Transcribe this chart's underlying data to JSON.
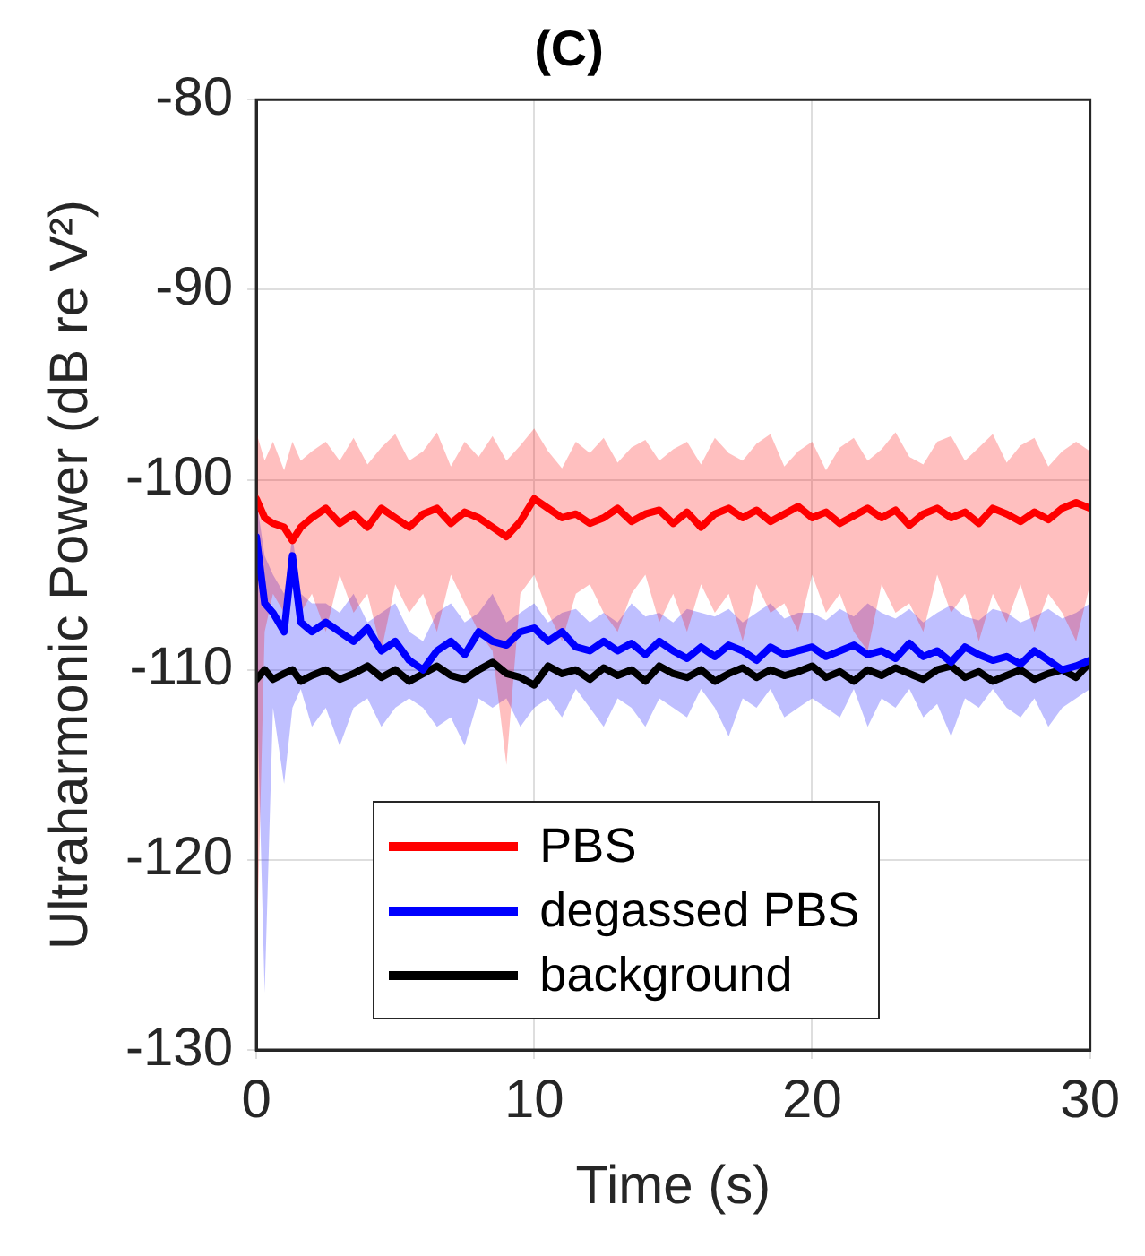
{
  "chart_data": {
    "type": "line",
    "title": "(C)",
    "xlabel": "Time (s)",
    "ylabel": "Ultraharmonic Power (dB re V²)",
    "xlim": [
      0,
      30
    ],
    "xticks": [
      0,
      10,
      20,
      30
    ],
    "ylim": [
      -130,
      -80
    ],
    "yticks": [
      -130,
      -120,
      -110,
      -100,
      -90,
      -80
    ],
    "grid": true,
    "legend": "bottom",
    "marker": "none",
    "line_style": "solid",
    "x": [
      0,
      0.3,
      0.6,
      1,
      1.3,
      1.6,
      2,
      2.5,
      3,
      3.5,
      4,
      4.5,
      5,
      5.5,
      6,
      6.5,
      7,
      7.5,
      8,
      8.5,
      9,
      9.5,
      10,
      10.5,
      11,
      11.5,
      12,
      12.5,
      13,
      13.5,
      14,
      14.5,
      15,
      15.5,
      16,
      16.5,
      17,
      17.5,
      18,
      18.5,
      19,
      19.5,
      20,
      20.5,
      21,
      21.5,
      22,
      22.5,
      23,
      23.5,
      24,
      24.5,
      25,
      25.5,
      26,
      26.5,
      27,
      27.5,
      28,
      28.5,
      29,
      29.5,
      30
    ],
    "series": [
      {
        "name": "PBS",
        "color": "#ff0000",
        "values": [
          -101,
          -102,
          -102.3,
          -102.5,
          -103.2,
          -102.5,
          -102,
          -101.5,
          -102.3,
          -101.8,
          -102.5,
          -101.5,
          -102,
          -102.5,
          -101.8,
          -101.5,
          -102.3,
          -101.7,
          -102,
          -102.5,
          -103,
          -102.2,
          -101,
          -101.5,
          -102,
          -101.8,
          -102.3,
          -102,
          -101.5,
          -102.2,
          -101.8,
          -101.6,
          -102.3,
          -101.7,
          -102.5,
          -101.8,
          -101.5,
          -102,
          -101.6,
          -102.2,
          -101.8,
          -101.4,
          -102,
          -101.7,
          -102.3,
          -101.9,
          -101.5,
          -102,
          -101.6,
          -102.4,
          -101.8,
          -101.5,
          -102,
          -101.7,
          -102.3,
          -101.5,
          -101.8,
          -102.2,
          -101.7,
          -102.1,
          -101.5,
          -101.2,
          -101.5
        ],
        "upper": [
          -97.5,
          -99,
          -98,
          -99.5,
          -98,
          -99,
          -98.5,
          -98,
          -99,
          -97.8,
          -99.2,
          -98.3,
          -97.6,
          -99,
          -98.5,
          -97.5,
          -99.3,
          -98,
          -98.8,
          -97.7,
          -99,
          -98.2,
          -97.3,
          -98.5,
          -99.4,
          -98,
          -98.6,
          -97.8,
          -99.1,
          -98.3,
          -97.9,
          -99,
          -98.4,
          -98,
          -99.2,
          -97.8,
          -98.6,
          -99,
          -98.1,
          -97.6,
          -99.3,
          -98.5,
          -98,
          -99.5,
          -98.3,
          -97.8,
          -99,
          -98.4,
          -97.5,
          -98.8,
          -99.2,
          -98,
          -97.7,
          -99,
          -98.3,
          -97.6,
          -99.1,
          -98.2,
          -97.8,
          -99.3,
          -98.5,
          -98,
          -98.5
        ],
        "lower": [
          -126,
          -108,
          -106,
          -107,
          -105,
          -107,
          -106,
          -108,
          -105,
          -107,
          -106,
          -109,
          -105.5,
          -107,
          -106,
          -108,
          -105,
          -106.5,
          -108,
          -109,
          -115,
          -106,
          -105,
          -107,
          -108.5,
          -106,
          -105.5,
          -107,
          -108,
          -106,
          -105,
          -107.5,
          -106,
          -108,
          -105.5,
          -107,
          -106,
          -108.5,
          -105.5,
          -107,
          -106.5,
          -108,
          -105,
          -107,
          -106,
          -108,
          -109,
          -105.5,
          -107,
          -106.5,
          -108,
          -105,
          -107,
          -106,
          -108.5,
          -106,
          -107.5,
          -105.5,
          -108,
          -106,
          -107,
          -108.5,
          -105.5
        ]
      },
      {
        "name": "degassed PBS",
        "color": "#0000ff",
        "values": [
          -103,
          -106.5,
          -107,
          -108,
          -104,
          -107.5,
          -108,
          -107.5,
          -108,
          -108.5,
          -107.8,
          -109,
          -108.5,
          -109.5,
          -110,
          -109,
          -108.5,
          -109.2,
          -108,
          -108.5,
          -108.7,
          -108,
          -107.8,
          -108.5,
          -108,
          -108.8,
          -109,
          -108.5,
          -109,
          -108.6,
          -109.2,
          -108.5,
          -109,
          -109.4,
          -108.8,
          -109.3,
          -108.7,
          -109,
          -109.5,
          -108.8,
          -109.2,
          -109,
          -108.8,
          -109.3,
          -109,
          -108.7,
          -109.2,
          -109,
          -109.4,
          -108.6,
          -109.3,
          -109,
          -109.6,
          -108.8,
          -109.2,
          -109.5,
          -109.3,
          -109.7,
          -109,
          -109.5,
          -110,
          -109.8,
          -109.5
        ],
        "upper": [
          -101,
          -104,
          -105,
          -106,
          -103,
          -106,
          -106.5,
          -106.5,
          -107,
          -106,
          -107.5,
          -107,
          -106.5,
          -108,
          -108.5,
          -107,
          -106.5,
          -107.5,
          -107,
          -106,
          -107.5,
          -107,
          -106.5,
          -107.5,
          -107,
          -106.8,
          -107.5,
          -107,
          -107.5,
          -106.5,
          -107.2,
          -107,
          -107.5,
          -106.8,
          -107,
          -107.2,
          -106.8,
          -107.5,
          -107,
          -106.5,
          -107.3,
          -107,
          -107,
          -107.4,
          -106.8,
          -107.2,
          -106.5,
          -107,
          -107.3,
          -106.8,
          -107.5,
          -107,
          -106.6,
          -107.2,
          -107.4,
          -106.8,
          -107,
          -107.5,
          -107.2,
          -106.8,
          -107.3,
          -107,
          -106.5
        ],
        "lower": [
          -110,
          -127,
          -112,
          -116,
          -112,
          -111,
          -113,
          -112,
          -114,
          -112,
          -111.5,
          -113,
          -112,
          -111.5,
          -112,
          -113,
          -112.5,
          -114,
          -111.5,
          -112,
          -111.5,
          -113,
          -112,
          -111.5,
          -112.5,
          -111,
          -112,
          -113,
          -111.5,
          -112,
          -113,
          -111.5,
          -112,
          -112.5,
          -111,
          -112,
          -113.5,
          -111.5,
          -112,
          -111,
          -112.5,
          -112,
          -111.5,
          -112,
          -112.5,
          -111,
          -113,
          -111.5,
          -112,
          -111,
          -112.5,
          -111.8,
          -113.5,
          -111.5,
          -112,
          -111,
          -112,
          -112.5,
          -111.5,
          -113,
          -112,
          -111.5,
          -111
        ]
      },
      {
        "name": "background",
        "color": "#000000",
        "values": [
          -110.5,
          -110,
          -110.5,
          -110.2,
          -110,
          -110.6,
          -110.3,
          -110,
          -110.5,
          -110.2,
          -109.8,
          -110.4,
          -110,
          -110.6,
          -110.2,
          -109.8,
          -110.3,
          -110.5,
          -110,
          -109.6,
          -110.2,
          -110.4,
          -110.8,
          -109.8,
          -110.2,
          -110,
          -110.5,
          -109.9,
          -110.3,
          -110,
          -110.6,
          -109.8,
          -110.2,
          -110.4,
          -110,
          -110.6,
          -110.2,
          -109.9,
          -110.4,
          -110,
          -110.3,
          -110.1,
          -109.8,
          -110.4,
          -110.1,
          -110.6,
          -110,
          -110.3,
          -109.9,
          -110.2,
          -110.5,
          -110,
          -109.8,
          -110.4,
          -110.1,
          -110.6,
          -110.3,
          -110,
          -110.5,
          -110.2,
          -110,
          -110.4,
          -109.6
        ]
      }
    ]
  }
}
